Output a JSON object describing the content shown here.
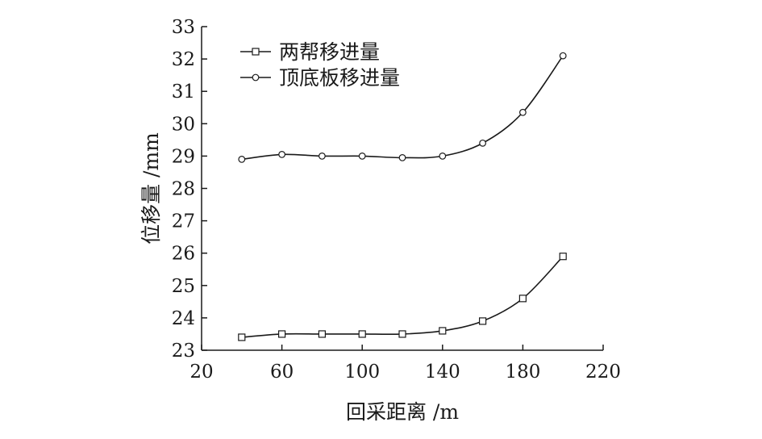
{
  "chart_data": {
    "type": "line",
    "xlabel": "回采距离 /m",
    "ylabel": "位移量 /mm",
    "xlim": [
      20,
      220
    ],
    "ylim": [
      23,
      33
    ],
    "xticks": [
      20,
      60,
      100,
      140,
      180,
      220
    ],
    "yticks": [
      23,
      24,
      25,
      26,
      27,
      28,
      29,
      30,
      31,
      32,
      33
    ],
    "grid": false,
    "legend_position": "top-left",
    "series": [
      {
        "name": "两帮移进量",
        "marker": "square",
        "x": [
          40,
          60,
          80,
          100,
          120,
          140,
          160,
          180,
          200
        ],
        "values": [
          23.4,
          23.5,
          23.5,
          23.5,
          23.5,
          23.6,
          23.9,
          24.6,
          25.9
        ]
      },
      {
        "name": "顶底板移进量",
        "marker": "circle",
        "x": [
          40,
          60,
          80,
          100,
          120,
          140,
          160,
          180,
          200
        ],
        "values": [
          28.9,
          29.05,
          29.0,
          29.0,
          28.95,
          29.0,
          29.4,
          30.35,
          32.1
        ]
      }
    ]
  }
}
